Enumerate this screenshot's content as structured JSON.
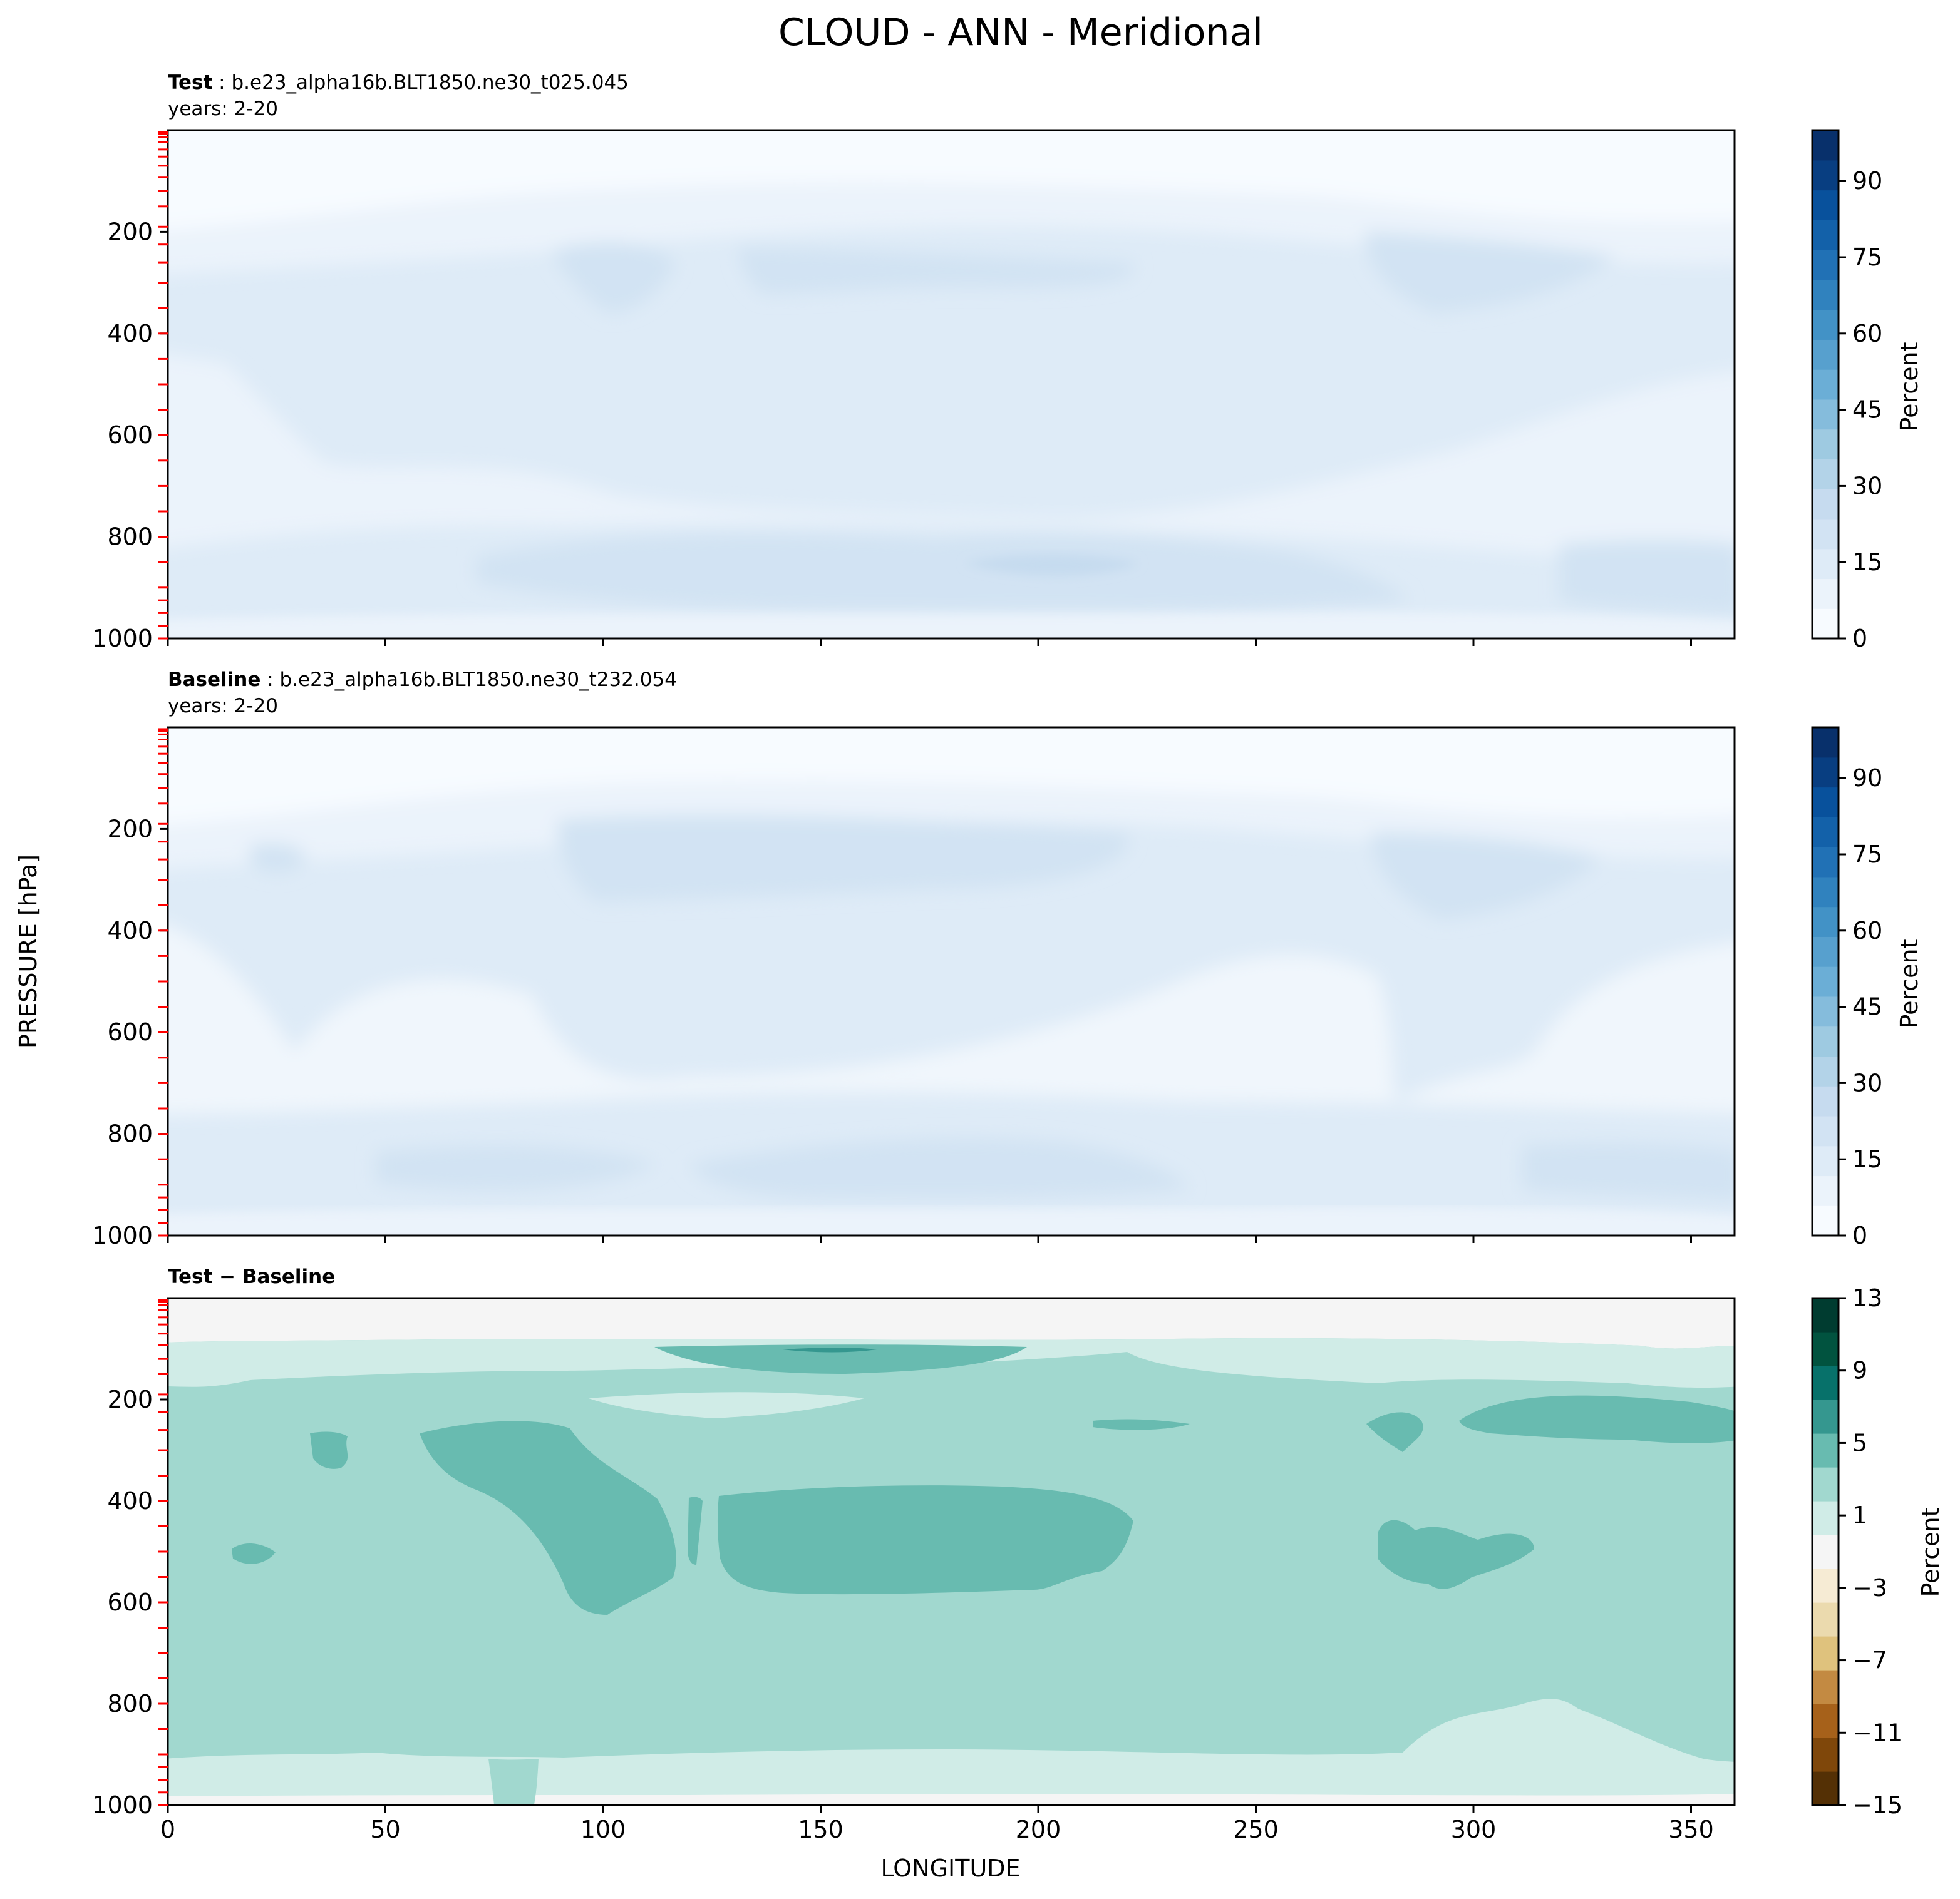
{
  "figure": {
    "title": "CLOUD - ANN - Meridional"
  },
  "axes_shared": {
    "ylabel": "PRESSURE [hPa]",
    "xlabel": "LONGITUDE"
  },
  "panels": [
    {
      "id": "test",
      "label_bold": "Test",
      "label_rest": " : b.e23_alpha16b.BLT1850.ne30_t025.045",
      "years": "years: 2-20",
      "cbar_label": "Percent"
    },
    {
      "id": "baseline",
      "label_bold": "Baseline",
      "label_rest": " : b.e23_alpha16b.BLT1850.ne30_t232.054",
      "years": "years: 2-20",
      "cbar_label": "Percent"
    },
    {
      "id": "diff",
      "label_bold": "Test − Baseline",
      "label_rest": "",
      "years": "",
      "cbar_label": "Percent"
    }
  ],
  "chart_data": [
    {
      "type": "contour",
      "title": "Test : b.e23_alpha16b.BLT1850.ne30_t025.045",
      "subtitle": "years: 2-20",
      "xlabel": "LONGITUDE",
      "ylabel": "PRESSURE [hPa]",
      "xlim": [
        0,
        360
      ],
      "ylim": [
        1000,
        0
      ],
      "x_ticks": [
        0,
        50,
        100,
        150,
        200,
        250,
        300,
        350
      ],
      "y_ticks": [
        200,
        400,
        600,
        800,
        1000
      ],
      "colorbar": {
        "label": "Percent",
        "ticks": [
          0,
          15,
          30,
          45,
          60,
          75,
          90
        ],
        "range": [
          0,
          100
        ],
        "cmap": "Blues"
      },
      "approx_field_percent": [
        {
          "pressure": 50,
          "value": 2
        },
        {
          "pressure": 200,
          "value": 14
        },
        {
          "pressure": 300,
          "value": 18
        },
        {
          "pressure": 500,
          "value": 14
        },
        {
          "pressure": 650,
          "value": 12
        },
        {
          "pressure": 850,
          "value": 18
        },
        {
          "pressure": 950,
          "value": 14
        }
      ]
    },
    {
      "type": "contour",
      "title": "Baseline : b.e23_alpha16b.BLT1850.ne30_t232.054",
      "subtitle": "years: 2-20",
      "xlabel": "LONGITUDE",
      "ylabel": "PRESSURE [hPa]",
      "xlim": [
        0,
        360
      ],
      "ylim": [
        1000,
        0
      ],
      "x_ticks": [
        0,
        50,
        100,
        150,
        200,
        250,
        300,
        350
      ],
      "y_ticks": [
        200,
        400,
        600,
        800,
        1000
      ],
      "colorbar": {
        "label": "Percent",
        "ticks": [
          0,
          15,
          30,
          45,
          60,
          75,
          90
        ],
        "range": [
          0,
          100
        ],
        "cmap": "Blues"
      },
      "approx_field_percent": [
        {
          "pressure": 50,
          "value": 2
        },
        {
          "pressure": 200,
          "value": 10
        },
        {
          "pressure": 300,
          "value": 13
        },
        {
          "pressure": 500,
          "value": 9
        },
        {
          "pressure": 650,
          "value": 7
        },
        {
          "pressure": 850,
          "value": 13
        },
        {
          "pressure": 950,
          "value": 10
        }
      ]
    },
    {
      "type": "contour",
      "title": "Test − Baseline",
      "xlabel": "LONGITUDE",
      "ylabel": "PRESSURE [hPa]",
      "xlim": [
        0,
        360
      ],
      "ylim": [
        1000,
        0
      ],
      "x_ticks": [
        0,
        50,
        100,
        150,
        200,
        250,
        300,
        350
      ],
      "x_tick_labels": [
        "0",
        "50",
        "100",
        "150",
        "200",
        "250",
        "300",
        "350"
      ],
      "y_ticks": [
        200,
        400,
        600,
        800,
        1000
      ],
      "colorbar": {
        "label": "Percent",
        "ticks": [
          13,
          9,
          5,
          1,
          -3,
          -7,
          -11,
          -15
        ],
        "tick_labels": [
          "13",
          "9",
          "5",
          "1",
          "−3",
          "−7",
          "−11",
          "−15"
        ],
        "range": [
          -15,
          13
        ],
        "cmap": "BrBG"
      },
      "approx_field_percent": [
        {
          "pressure": 50,
          "value": 0
        },
        {
          "pressure": 130,
          "value": 4
        },
        {
          "pressure": 350,
          "value": 5
        },
        {
          "pressure": 480,
          "value": 5.5
        },
        {
          "pressure": 700,
          "value": 4
        },
        {
          "pressure": 950,
          "value": 2
        }
      ]
    }
  ],
  "colors": {
    "blues": [
      "#f7fbff",
      "#ebf3fb",
      "#deebf7",
      "#d2e3f3",
      "#c6dbef",
      "#b3d3e8",
      "#9ecae1",
      "#85bcdc",
      "#6baed6",
      "#57a0ce",
      "#4292c6",
      "#3082be",
      "#2171b5",
      "#1361a9",
      "#08519c",
      "#083e81",
      "#08306b"
    ],
    "brbg": [
      "#543005",
      "#7f470a",
      "#a6611a",
      "#c38a42",
      "#dfc27d",
      "#ebdaae",
      "#f6ebd4",
      "#f5f5f5",
      "#d0ece7",
      "#a1d8cf",
      "#68bbb0",
      "#35978f",
      "#07716a",
      "#01533f",
      "#003c30"
    ],
    "tick_red": "#ff0000"
  }
}
